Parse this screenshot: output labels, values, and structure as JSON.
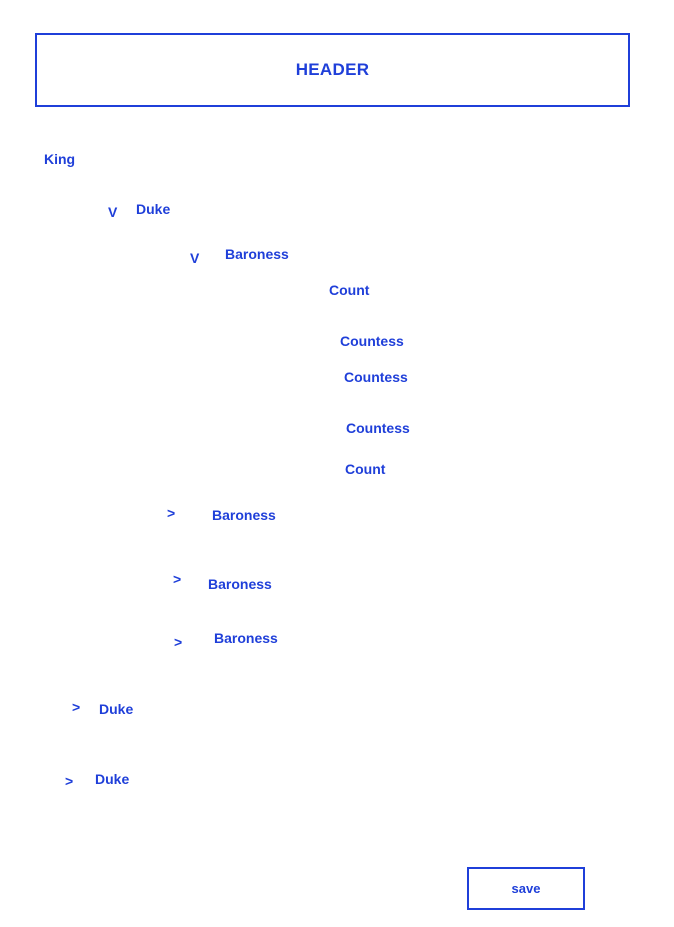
{
  "header": {
    "title": "HEADER"
  },
  "tree": {
    "king": {
      "label": "King"
    },
    "duke_1": {
      "toggle": "V",
      "label": "Duke"
    },
    "baroness_1": {
      "toggle": "V",
      "label": "Baroness"
    },
    "count_1": {
      "label": "Count"
    },
    "countess_1": {
      "label": "Countess"
    },
    "countess_2": {
      "label": "Countess"
    },
    "countess_3": {
      "label": "Countess"
    },
    "count_2": {
      "label": "Count"
    },
    "baroness_2": {
      "toggle": ">",
      "label": "Baroness"
    },
    "baroness_3": {
      "toggle": ">",
      "label": "Baroness"
    },
    "baroness_4": {
      "toggle": ">",
      "label": "Baroness"
    },
    "duke_2": {
      "toggle": ">",
      "label": "Duke"
    },
    "duke_3": {
      "toggle": ">",
      "label": "Duke"
    }
  },
  "footer": {
    "save_label": "save"
  },
  "colors": {
    "accent": "#1f3fd9",
    "background": "#ffffff"
  }
}
